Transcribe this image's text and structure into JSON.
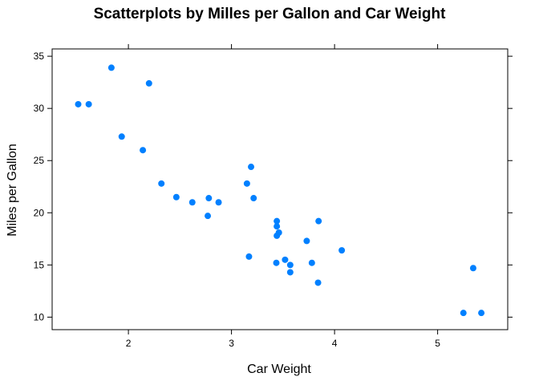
{
  "chart_data": {
    "type": "scatter",
    "title": "Scatterplots by Milles per Gallon and  Car Weight",
    "xlabel": "Car Weight",
    "ylabel": "Miles per Gallon",
    "xlim": [
      1.26,
      5.68
    ],
    "ylim": [
      8.8,
      35.7
    ],
    "x_ticks": [
      2,
      3,
      4,
      5
    ],
    "y_ticks": [
      10,
      15,
      20,
      25,
      30,
      35
    ],
    "grid": false,
    "point_color": "#0080ff",
    "points": [
      {
        "x": 2.62,
        "y": 21.0
      },
      {
        "x": 2.875,
        "y": 21.0
      },
      {
        "x": 2.32,
        "y": 22.8
      },
      {
        "x": 3.215,
        "y": 21.4
      },
      {
        "x": 3.44,
        "y": 18.7
      },
      {
        "x": 3.46,
        "y": 18.1
      },
      {
        "x": 3.57,
        "y": 14.3
      },
      {
        "x": 3.19,
        "y": 24.4
      },
      {
        "x": 3.15,
        "y": 22.8
      },
      {
        "x": 3.44,
        "y": 19.2
      },
      {
        "x": 3.44,
        "y": 17.8
      },
      {
        "x": 4.07,
        "y": 16.4
      },
      {
        "x": 3.73,
        "y": 17.3
      },
      {
        "x": 3.78,
        "y": 15.2
      },
      {
        "x": 5.25,
        "y": 10.4
      },
      {
        "x": 5.424,
        "y": 10.4
      },
      {
        "x": 5.345,
        "y": 14.7
      },
      {
        "x": 2.2,
        "y": 32.4
      },
      {
        "x": 1.615,
        "y": 30.4
      },
      {
        "x": 1.835,
        "y": 33.9
      },
      {
        "x": 2.465,
        "y": 21.5
      },
      {
        "x": 3.52,
        "y": 15.5
      },
      {
        "x": 3.435,
        "y": 15.2
      },
      {
        "x": 3.84,
        "y": 13.3
      },
      {
        "x": 3.845,
        "y": 19.2
      },
      {
        "x": 1.935,
        "y": 27.3
      },
      {
        "x": 2.14,
        "y": 26.0
      },
      {
        "x": 1.513,
        "y": 30.4
      },
      {
        "x": 3.17,
        "y": 15.8
      },
      {
        "x": 2.77,
        "y": 19.7
      },
      {
        "x": 3.57,
        "y": 15.0
      },
      {
        "x": 2.78,
        "y": 21.4
      }
    ]
  }
}
